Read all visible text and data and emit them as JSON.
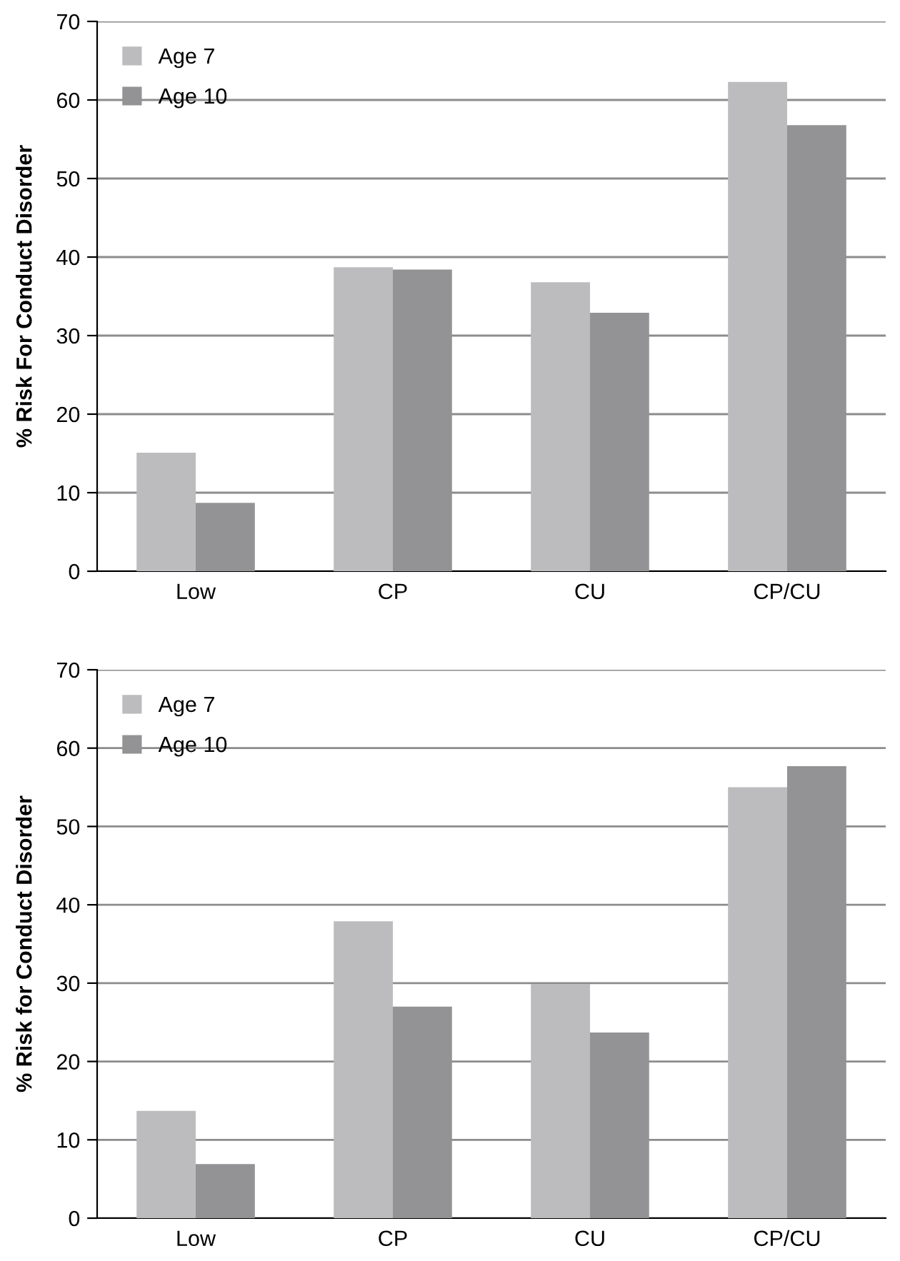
{
  "chart_data": [
    {
      "type": "bar",
      "ylabel": "% Risk For Conduct Disorder",
      "categories": [
        "Low",
        "CP",
        "CU",
        "CP/CU"
      ],
      "series": [
        {
          "name": "Age 7",
          "color": "#bcbcbe",
          "values": [
            15.1,
            38.7,
            36.8,
            62.3
          ]
        },
        {
          "name": "Age 10",
          "color": "#939395",
          "values": [
            8.7,
            38.4,
            32.9,
            56.8
          ]
        }
      ],
      "ylim": [
        0,
        70
      ],
      "yticks": [
        0,
        10,
        20,
        30,
        40,
        50,
        60,
        70
      ],
      "grid": "y",
      "legend": "top left"
    },
    {
      "type": "bar",
      "ylabel": "% Risk for Conduct Disorder",
      "categories": [
        "Low",
        "CP",
        "CU",
        "CP/CU"
      ],
      "series": [
        {
          "name": "Age 7",
          "color": "#bcbcbe",
          "values": [
            13.7,
            37.9,
            29.9,
            55.0
          ]
        },
        {
          "name": "Age 10",
          "color": "#939395",
          "values": [
            6.9,
            27.0,
            23.7,
            57.7
          ]
        }
      ],
      "ylim": [
        0,
        70
      ],
      "yticks": [
        0,
        10,
        20,
        30,
        40,
        50,
        60,
        70
      ],
      "grid": "y",
      "legend": "top left"
    }
  ]
}
